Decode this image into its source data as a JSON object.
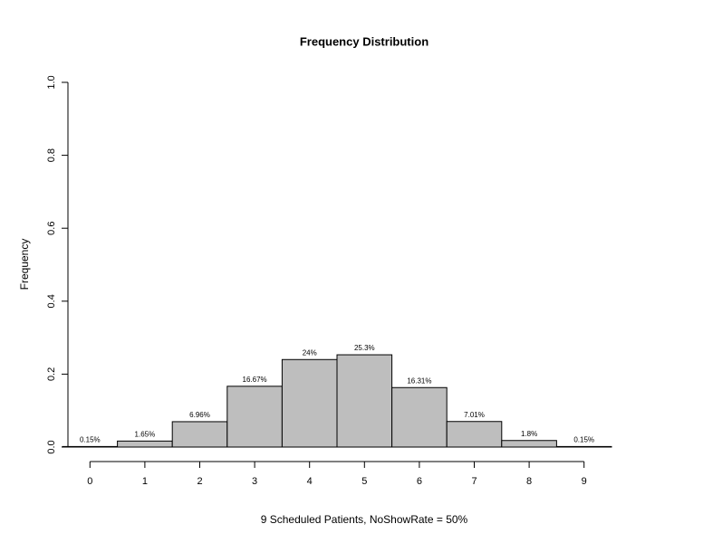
{
  "chart_data": {
    "type": "bar",
    "title": "Frequency Distribution",
    "x_label": "9 Scheduled Patients,  NoShowRate = 50%",
    "y_label": "Frequency",
    "categories": [
      "0",
      "1",
      "2",
      "3",
      "4",
      "5",
      "6",
      "7",
      "8",
      "9"
    ],
    "values": [
      0.0015,
      0.0165,
      0.0696,
      0.1667,
      0.24,
      0.253,
      0.1631,
      0.0701,
      0.018,
      0.0015
    ],
    "value_labels": [
      "0.15%",
      "1.65%",
      "6.96%",
      "16.67%",
      "24%",
      "25.3%",
      "16.31%",
      "7.01%",
      "1.8%",
      "0.15%"
    ],
    "color": "#bebebe",
    "ylim": [
      0,
      1
    ],
    "yticks": [
      {
        "value": 0,
        "label": "0.0"
      },
      0.2,
      0.4,
      0.6,
      0.8,
      {
        "value": 1,
        "label": "1.0"
      }
    ],
    "grid": false
  }
}
